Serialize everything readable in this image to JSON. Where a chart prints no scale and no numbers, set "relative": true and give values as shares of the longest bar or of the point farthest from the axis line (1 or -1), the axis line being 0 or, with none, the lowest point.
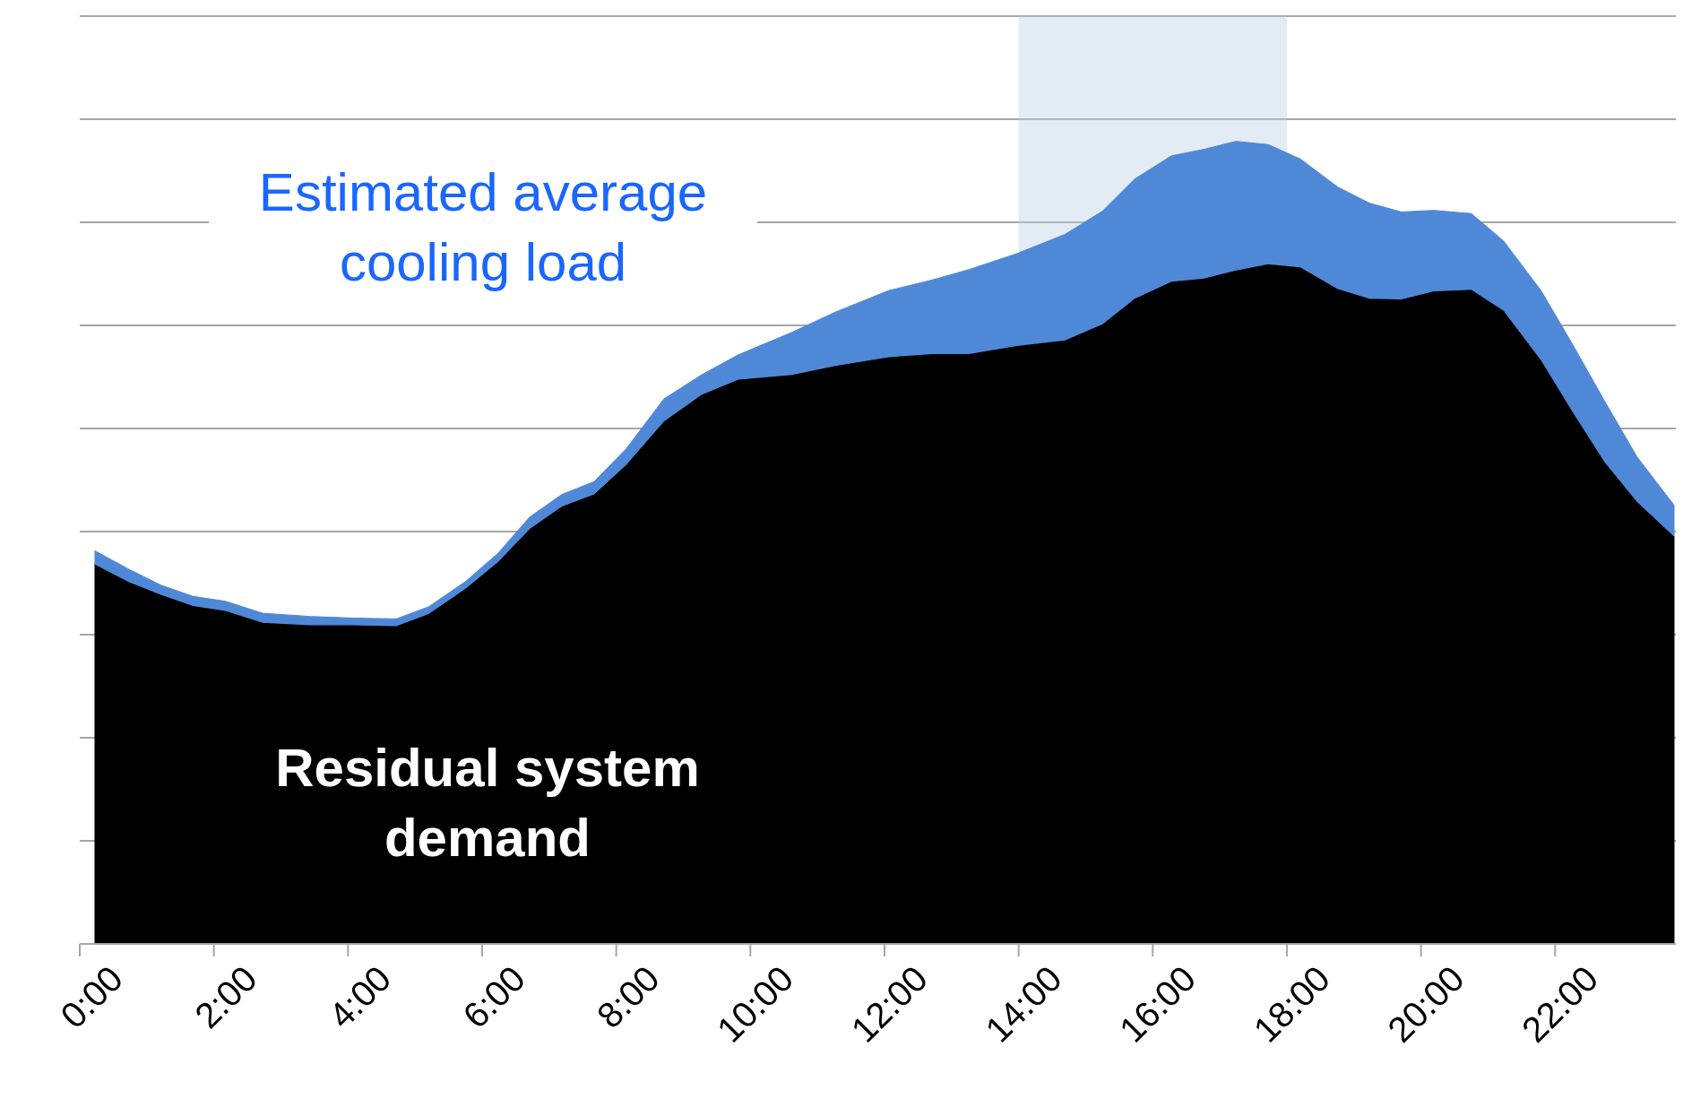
{
  "chart_data": {
    "type": "area",
    "stacked": true,
    "relative": true,
    "grid": "y",
    "x": [
      0.22,
      0.73,
      1.21,
      1.69,
      2.17,
      2.73,
      3.44,
      4.08,
      4.72,
      5.2,
      5.76,
      6.24,
      6.71,
      7.19,
      7.67,
      8.15,
      8.71,
      9.27,
      9.82,
      10.62,
      11.26,
      12.06,
      12.7,
      13.25,
      13.97,
      14.69,
      15.25,
      15.73,
      16.28,
      16.76,
      17.24,
      17.72,
      18.2,
      18.76,
      19.23,
      19.71,
      20.19,
      20.75,
      21.23,
      21.79,
      22.26,
      22.74,
      23.22,
      23.78
    ],
    "xlim": [
      0,
      23.8
    ],
    "xticks": [
      {
        "value": 0,
        "label": "0:00"
      },
      {
        "value": 2,
        "label": "2:00"
      },
      {
        "value": 4,
        "label": "4:00"
      },
      {
        "value": 6,
        "label": "6:00"
      },
      {
        "value": 8,
        "label": "8:00"
      },
      {
        "value": 10,
        "label": "10:00"
      },
      {
        "value": 12,
        "label": "12:00"
      },
      {
        "value": 14,
        "label": "14:00"
      },
      {
        "value": 16,
        "label": "16:00"
      },
      {
        "value": 18,
        "label": "18:00"
      },
      {
        "value": 20,
        "label": "20:00"
      },
      {
        "value": 22,
        "label": "22:00"
      }
    ],
    "series": [
      {
        "name": "Residual system demand",
        "color": "#000000",
        "values": [
          0.473,
          0.451,
          0.435,
          0.421,
          0.415,
          0.4,
          0.397,
          0.397,
          0.396,
          0.411,
          0.443,
          0.476,
          0.517,
          0.545,
          0.56,
          0.597,
          0.651,
          0.684,
          0.703,
          0.709,
          0.72,
          0.731,
          0.735,
          0.735,
          0.745,
          0.752,
          0.772,
          0.804,
          0.825,
          0.829,
          0.839,
          0.847,
          0.843,
          0.816,
          0.804,
          0.803,
          0.813,
          0.815,
          0.789,
          0.727,
          0.663,
          0.6,
          0.551,
          0.507
        ]
      },
      {
        "name": "Estimated average cooling load",
        "color": "#4f88d6",
        "values": [
          0.017,
          0.016,
          0.012,
          0.012,
          0.012,
          0.012,
          0.011,
          0.009,
          0.009,
          0.009,
          0.009,
          0.011,
          0.015,
          0.015,
          0.016,
          0.02,
          0.028,
          0.025,
          0.031,
          0.053,
          0.067,
          0.083,
          0.092,
          0.105,
          0.115,
          0.132,
          0.141,
          0.149,
          0.157,
          0.161,
          0.161,
          0.149,
          0.135,
          0.127,
          0.119,
          0.109,
          0.101,
          0.095,
          0.087,
          0.087,
          0.084,
          0.076,
          0.056,
          0.039
        ]
      }
    ],
    "bands": [
      {
        "axis": "x",
        "from": 14,
        "to": 18,
        "color": "#b8cce4"
      }
    ]
  }
}
